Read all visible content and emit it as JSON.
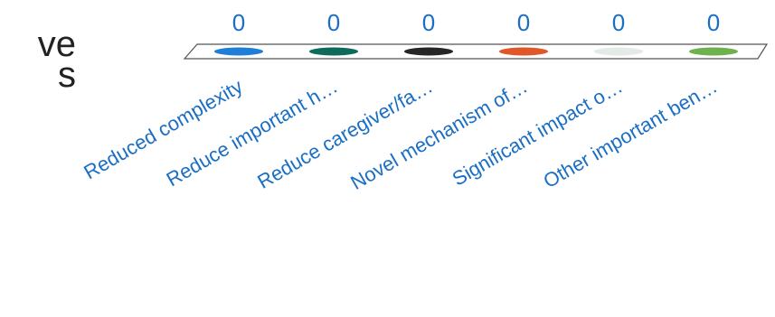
{
  "panel": {
    "title_fragment": "ve\ns"
  },
  "chart_data": {
    "type": "bar",
    "categories": [
      "Reduced complexity",
      "Reduce important h…",
      "Reduce caregiver/fa…",
      "Novel mechanism of…",
      "Significant impact o…",
      "Other important ben…"
    ],
    "values": [
      0,
      0,
      0,
      0,
      0,
      0
    ],
    "series_colors": [
      "#1f7fd6",
      "#0e6b5a",
      "#262626",
      "#e0582a",
      "#e4eae6",
      "#6db24d"
    ],
    "grid": false,
    "legend": "none"
  }
}
